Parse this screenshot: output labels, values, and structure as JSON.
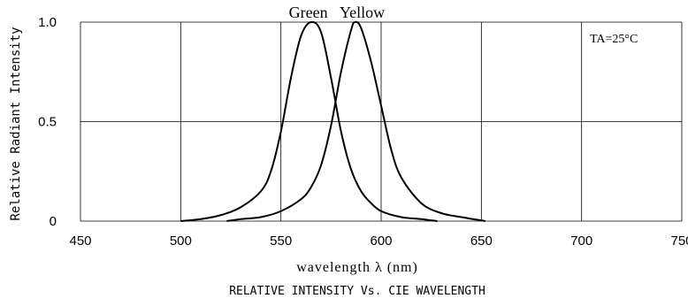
{
  "chart_data": {
    "type": "line",
    "ylabel": "Relative Radiant Intensity",
    "xlabel": "wavelength λ (nm)",
    "caption": "RELATIVE INTENSITY Vs. CIE WAVELENGTH",
    "condition": "TA=25°C",
    "xlim": [
      450,
      750
    ],
    "ylim": [
      0,
      1.0
    ],
    "x_ticks": [
      "450",
      "500",
      "550",
      "600",
      "650",
      "700",
      "750"
    ],
    "y_ticks": [
      "0",
      "0.5",
      "1.0"
    ],
    "grid": true,
    "series": [
      {
        "name": "Green",
        "x": [
          500,
          510,
          520,
          530,
          540,
          545,
          550,
          555,
          560,
          565,
          570,
          575,
          580,
          585,
          590,
          595,
          600,
          610,
          620,
          628
        ],
        "values": [
          0.0,
          0.01,
          0.03,
          0.07,
          0.15,
          0.25,
          0.45,
          0.72,
          0.93,
          1.0,
          0.95,
          0.72,
          0.45,
          0.26,
          0.15,
          0.09,
          0.05,
          0.02,
          0.01,
          0.0
        ]
      },
      {
        "name": "Yellow",
        "x": [
          523,
          530,
          540,
          550,
          560,
          565,
          570,
          575,
          580,
          585,
          587,
          590,
          595,
          600,
          605,
          610,
          620,
          630,
          640,
          652
        ],
        "values": [
          0.0,
          0.01,
          0.02,
          0.05,
          0.11,
          0.17,
          0.28,
          0.48,
          0.75,
          0.96,
          1.0,
          0.97,
          0.8,
          0.58,
          0.36,
          0.22,
          0.09,
          0.04,
          0.02,
          0.0
        ]
      }
    ]
  }
}
